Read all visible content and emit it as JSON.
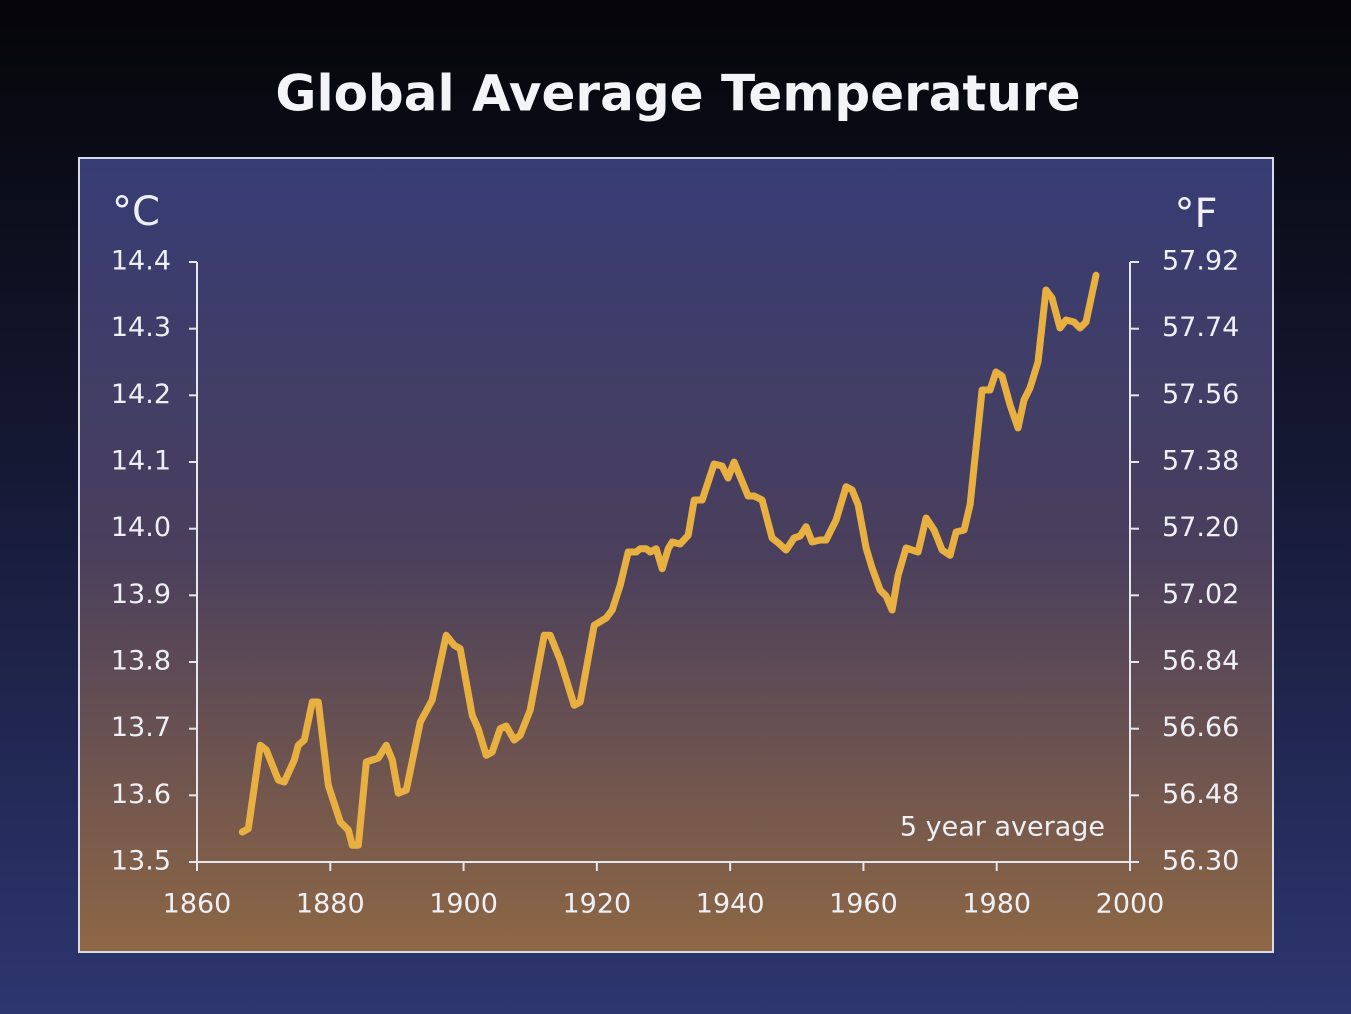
{
  "chart_data": {
    "type": "line",
    "title": "Global Average Temperature",
    "ylabel": "°C",
    "y2label": "°F",
    "annotation": "5 year average",
    "x": [
      1866.8,
      1867.7,
      1869.5,
      1870.4,
      1872.2,
      1873.1,
      1874.6,
      1875.2,
      1876.1,
      1877.3,
      1878.2,
      1879.7,
      1881.5,
      1882.7,
      1883.3,
      1884.2,
      1885.4,
      1886.3,
      1887.2,
      1888.4,
      1889.3,
      1890.2,
      1891.4,
      1893.5,
      1895.3,
      1897.4,
      1898.6,
      1899.5,
      1901.3,
      1902.2,
      1903.4,
      1904.3,
      1905.5,
      1906.4,
      1907.6,
      1908.5,
      1910.0,
      1912.1,
      1913.0,
      1914.5,
      1916.6,
      1917.5,
      1919.6,
      1921.4,
      1922.3,
      1923.5,
      1924.7,
      1925.9,
      1926.5,
      1927.4,
      1928.0,
      1928.9,
      1929.8,
      1930.7,
      1931.3,
      1932.5,
      1933.7,
      1934.6,
      1935.8,
      1937.6,
      1938.8,
      1939.7,
      1940.6,
      1942.7,
      1943.6,
      1944.8,
      1946.3,
      1947.2,
      1948.4,
      1949.6,
      1950.5,
      1951.4,
      1952.3,
      1953.5,
      1954.4,
      1955.9,
      1957.4,
      1958.3,
      1959.2,
      1960.4,
      1961.3,
      1962.5,
      1963.4,
      1964.3,
      1965.2,
      1966.4,
      1967.3,
      1968.2,
      1969.4,
      1970.6,
      1971.8,
      1973.0,
      1973.9,
      1975.1,
      1976.0,
      1977.8,
      1979.0,
      1979.9,
      1980.8,
      1982.0,
      1983.2,
      1984.1,
      1985.0,
      1986.2,
      1987.4,
      1988.3,
      1989.5,
      1990.4,
      1991.6,
      1992.5,
      1993.4,
      1994.9
    ],
    "series": [
      {
        "color": "#e8b040",
        "values": [
          13.545,
          13.55,
          13.675,
          13.668,
          13.623,
          13.62,
          13.653,
          13.675,
          13.683,
          13.74,
          13.74,
          13.615,
          13.56,
          13.548,
          13.525,
          13.525,
          13.65,
          13.653,
          13.656,
          13.675,
          13.653,
          13.603,
          13.608,
          13.71,
          13.743,
          13.84,
          13.825,
          13.82,
          13.72,
          13.7,
          13.66,
          13.665,
          13.7,
          13.704,
          13.683,
          13.69,
          13.728,
          13.84,
          13.84,
          13.803,
          13.735,
          13.74,
          13.855,
          13.866,
          13.878,
          13.915,
          13.965,
          13.965,
          13.97,
          13.97,
          13.965,
          13.97,
          13.94,
          13.97,
          13.98,
          13.977,
          13.99,
          14.043,
          14.043,
          14.097,
          14.094,
          14.076,
          14.1,
          14.049,
          14.049,
          14.043,
          13.986,
          13.979,
          13.968,
          13.986,
          13.989,
          14.003,
          13.98,
          13.983,
          13.983,
          14.013,
          14.063,
          14.058,
          14.036,
          13.971,
          13.941,
          13.908,
          13.899,
          13.878,
          13.93,
          13.971,
          13.968,
          13.965,
          14.016,
          13.998,
          13.968,
          13.96,
          13.995,
          13.998,
          14.036,
          14.208,
          14.208,
          14.235,
          14.229,
          14.186,
          14.151,
          14.193,
          14.211,
          14.25,
          14.358,
          14.346,
          14.301,
          14.313,
          14.31,
          14.301,
          14.31,
          14.38
        ]
      }
    ],
    "xlim": [
      1860,
      2000
    ],
    "xticks": [
      1860,
      1880,
      1900,
      1920,
      1940,
      1960,
      1980,
      2000
    ],
    "ylim": [
      13.5,
      14.4
    ],
    "yticks": [
      13.5,
      13.6,
      13.7,
      13.8,
      13.9,
      {
        "value": 14.0,
        "label": "14.0"
      },
      14.1,
      14.2,
      14.3,
      14.4
    ],
    "y2lim": [
      56.3,
      57.92
    ],
    "y2ticks": [
      {
        "value": 56.3,
        "label": "56.30"
      },
      56.48,
      56.66,
      56.84,
      57.02,
      {
        "value": 57.2,
        "label": "57.20"
      },
      57.38,
      57.56,
      57.74,
      57.92
    ]
  }
}
